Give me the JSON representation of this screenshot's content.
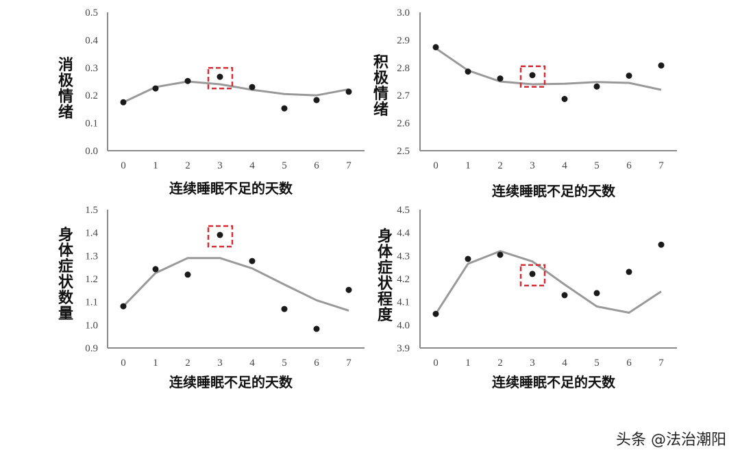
{
  "colors": {
    "line": "#999999",
    "dot": "#1a1a1a",
    "axis": "#888888",
    "tick_text": "#444444",
    "highlight_box": "#d42a33"
  },
  "watermark": "头条 @法治潮阳",
  "chart_data": [
    {
      "type": "line",
      "id": "negative-emotion",
      "title": "",
      "xlabel": "连续睡眠不足的天数",
      "ylabel": "消极情绪",
      "x": [
        0,
        1,
        2,
        3,
        4,
        5,
        6,
        7
      ],
      "x_tick_labels": [
        "0",
        "1",
        "2",
        "3",
        "4",
        "5",
        "6",
        "7"
      ],
      "y_tick_labels": [
        "0.0",
        "0.1",
        "0.2",
        "0.3",
        "0.4",
        "0.5"
      ],
      "ylim": [
        0.0,
        0.5
      ],
      "series": [
        {
          "name": "observed",
          "kind": "scatter",
          "values": [
            0.175,
            0.225,
            0.252,
            0.267,
            0.23,
            0.153,
            0.183,
            0.213
          ]
        },
        {
          "name": "fitted",
          "kind": "line",
          "values": [
            0.175,
            0.23,
            0.25,
            0.24,
            0.22,
            0.205,
            0.2,
            0.222
          ]
        }
      ],
      "highlight": {
        "x": 3,
        "shape": "dashed-box"
      },
      "grid": false
    },
    {
      "type": "line",
      "id": "positive-emotion",
      "title": "",
      "xlabel": "连续睡眠不足的天数",
      "ylabel": "积极情绪",
      "x": [
        0,
        1,
        2,
        3,
        4,
        5,
        6,
        7
      ],
      "x_tick_labels": [
        "0",
        "1",
        "2",
        "3",
        "4",
        "5",
        "6",
        "7"
      ],
      "y_tick_labels": [
        "2.5",
        "2.6",
        "2.7",
        "2.8",
        "2.9",
        "3.0"
      ],
      "ylim": [
        2.5,
        3.0
      ],
      "series": [
        {
          "name": "observed",
          "kind": "scatter",
          "values": [
            2.874,
            2.786,
            2.761,
            2.773,
            2.687,
            2.732,
            2.771,
            2.808
          ]
        },
        {
          "name": "fitted",
          "kind": "line",
          "values": [
            2.87,
            2.79,
            2.75,
            2.74,
            2.742,
            2.748,
            2.745,
            2.72
          ]
        }
      ],
      "highlight": {
        "x": 3,
        "shape": "dashed-box"
      },
      "grid": false
    },
    {
      "type": "line",
      "id": "physical-symptom-count",
      "title": "",
      "xlabel": "连续睡眠不足的天数",
      "ylabel": "身体症状数量",
      "x": [
        0,
        1,
        2,
        3,
        4,
        5,
        6,
        7
      ],
      "x_tick_labels": [
        "0",
        "1",
        "2",
        "3",
        "4",
        "5",
        "6",
        "7"
      ],
      "y_tick_labels": [
        "0.9",
        "1.0",
        "1.1",
        "1.2",
        "1.3",
        "1.4",
        "1.5"
      ],
      "ylim": [
        0.9,
        1.5
      ],
      "series": [
        {
          "name": "observed",
          "kind": "scatter",
          "values": [
            1.081,
            1.242,
            1.218,
            1.39,
            1.277,
            1.069,
            0.983,
            1.152
          ]
        },
        {
          "name": "fitted",
          "kind": "line",
          "values": [
            1.081,
            1.225,
            1.29,
            1.29,
            1.245,
            1.175,
            1.107,
            1.062
          ]
        }
      ],
      "highlight": {
        "x": 3,
        "shape": "dashed-box"
      },
      "grid": false
    },
    {
      "type": "line",
      "id": "physical-symptom-severity",
      "title": "",
      "xlabel": "连续睡眠不足的天数",
      "ylabel": "身体症状程度",
      "x": [
        0,
        1,
        2,
        3,
        4,
        5,
        6,
        7
      ],
      "x_tick_labels": [
        "0",
        "1",
        "2",
        "3",
        "4",
        "5",
        "6",
        "7"
      ],
      "y_tick_labels": [
        "3.9",
        "4.0",
        "4.1",
        "4.2",
        "4.3",
        "4.4",
        "4.5"
      ],
      "ylim": [
        3.9,
        4.5
      ],
      "series": [
        {
          "name": "observed",
          "kind": "scatter",
          "values": [
            4.048,
            4.286,
            4.304,
            4.221,
            4.129,
            4.138,
            4.23,
            4.348
          ]
        },
        {
          "name": "fitted",
          "kind": "line",
          "values": [
            4.048,
            4.265,
            4.32,
            4.275,
            4.175,
            4.08,
            4.053,
            4.145
          ]
        }
      ],
      "highlight": {
        "x": 3,
        "shape": "dashed-box"
      },
      "grid": false
    }
  ]
}
